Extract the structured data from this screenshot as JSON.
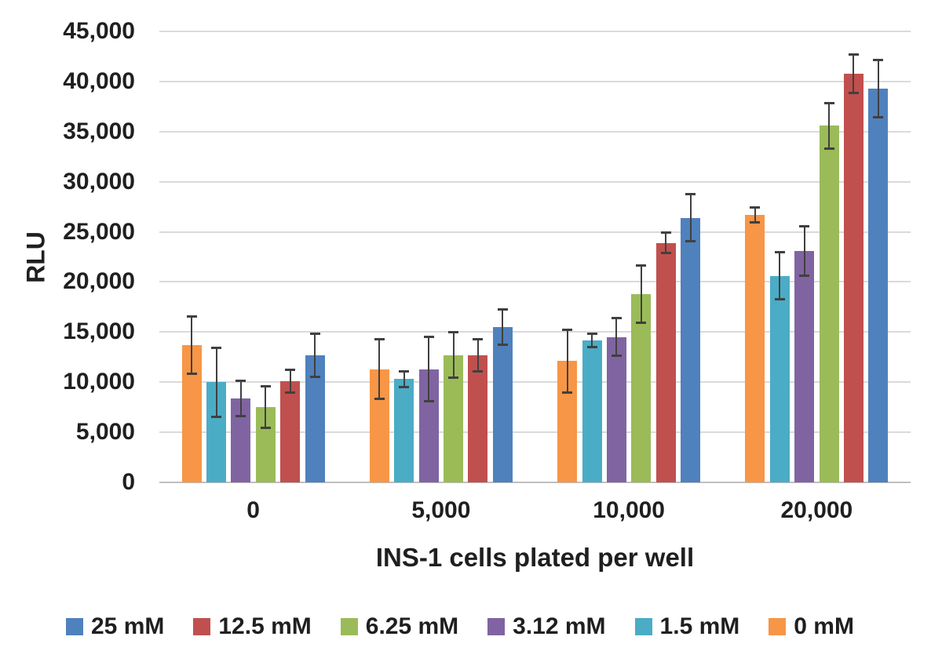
{
  "chart_data": {
    "type": "bar",
    "title": "",
    "xlabel": "INS-1 cells plated per well",
    "ylabel": "RLU",
    "ylim": [
      0,
      45000
    ],
    "y_tick_step": 5000,
    "y_tick_labels": [
      "0",
      "5,000",
      "10,000",
      "15,000",
      "20,000",
      "25,000",
      "30,000",
      "35,000",
      "40,000",
      "45,000"
    ],
    "categories": [
      "0",
      "5,000",
      "10,000",
      "20,000"
    ],
    "grid": "horizontal",
    "legend_position": "bottom",
    "error_bar_color": "#404040",
    "series": [
      {
        "name": "25 mM",
        "color": "#4F81BD",
        "values": [
          12700,
          15500,
          26400,
          39300
        ],
        "errors": [
          2200,
          1800,
          2400,
          2900
        ]
      },
      {
        "name": "12.5 mM",
        "color": "#C0504D",
        "values": [
          10100,
          12700,
          23900,
          40800
        ],
        "errors": [
          1200,
          1650,
          1050,
          1950
        ]
      },
      {
        "name": "6.25 mM",
        "color": "#9BBB59",
        "values": [
          7500,
          12700,
          18800,
          35600
        ],
        "errors": [
          2100,
          2300,
          2900,
          2300
        ]
      },
      {
        "name": "3.12 mM",
        "color": "#8064A2",
        "values": [
          8400,
          11300,
          14500,
          23100
        ],
        "errors": [
          1800,
          3250,
          1900,
          2500
        ]
      },
      {
        "name": "1.5 mM",
        "color": "#4BACC6",
        "values": [
          10000,
          10300,
          14200,
          20600
        ],
        "errors": [
          3500,
          850,
          700,
          2400
        ]
      },
      {
        "name": "0 mM",
        "color": "#F79646",
        "values": [
          13700,
          11300,
          12100,
          26700
        ],
        "errors": [
          2900,
          3000,
          3200,
          800
        ]
      }
    ]
  }
}
